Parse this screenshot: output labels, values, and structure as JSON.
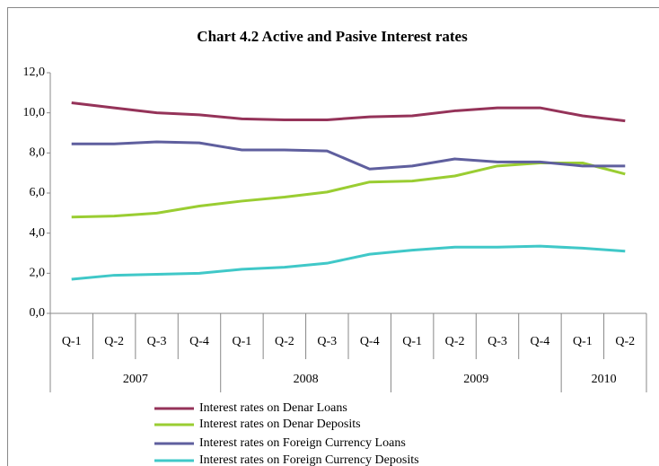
{
  "chart_data": {
    "type": "line",
    "title": "Chart 4.2  Active and Pasive Interest rates",
    "categories": [
      "Q-1",
      "Q-2",
      "Q-3",
      "Q-4",
      "Q-1",
      "Q-2",
      "Q-3",
      "Q-4",
      "Q-1",
      "Q-2",
      "Q-3",
      "Q-4",
      "Q-1",
      "Q-2"
    ],
    "years": [
      "2007",
      "2008",
      "2009",
      "2010"
    ],
    "series": [
      {
        "name": "Interest rates on Denar Loans",
        "color": "#953359",
        "values": [
          10.5,
          10.25,
          10.0,
          9.9,
          9.7,
          9.65,
          9.65,
          9.8,
          9.85,
          10.1,
          10.25,
          10.25,
          9.85,
          9.6
        ]
      },
      {
        "name": "Interest rates on Denar Deposits",
        "color": "#9acd32",
        "values": [
          4.8,
          4.85,
          5.0,
          5.35,
          5.6,
          5.8,
          6.05,
          6.55,
          6.6,
          6.85,
          7.35,
          7.5,
          7.5,
          6.95
        ]
      },
      {
        "name": " Interest rates on Foreign Currency Loans",
        "color": "#5f5f9e",
        "values": [
          8.45,
          8.45,
          8.55,
          8.5,
          8.15,
          8.15,
          8.1,
          7.2,
          7.35,
          7.7,
          7.55,
          7.55,
          7.35,
          7.35
        ]
      },
      {
        "name": " Interest rates on Foreign Currency Deposits",
        "color": "#40c8c8",
        "values": [
          1.7,
          1.9,
          1.95,
          2.0,
          2.2,
          2.3,
          2.5,
          2.95,
          3.15,
          3.3,
          3.3,
          3.35,
          3.25,
          3.1
        ]
      }
    ],
    "ylim": [
      0,
      12
    ],
    "yticks": [
      {
        "value": 0,
        "label": "0,0"
      },
      {
        "value": 2,
        "label": "2,0"
      },
      {
        "value": 4,
        "label": "4,0"
      },
      {
        "value": 6,
        "label": "6,0"
      },
      {
        "value": 8,
        "label": "8,0"
      },
      {
        "value": 10,
        "label": "10,0"
      },
      {
        "value": 12,
        "label": "12,0"
      }
    ],
    "grid": false
  }
}
